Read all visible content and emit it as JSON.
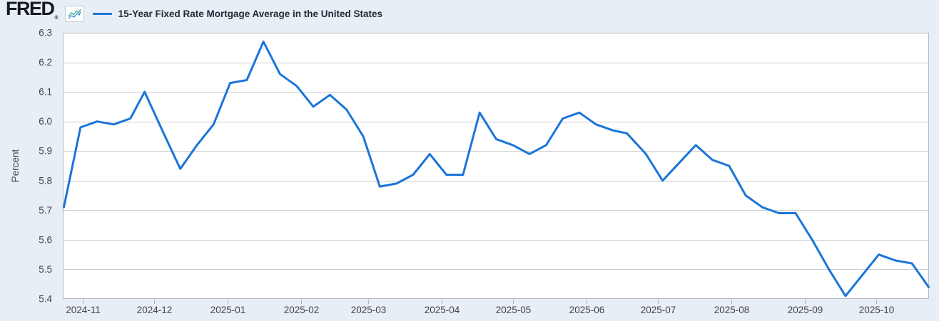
{
  "header": {
    "logo_text": "FRED",
    "registered_mark": "®"
  },
  "colors": {
    "background": "#e7eef6",
    "plot_background": "#ffffff",
    "frame": "#b3bac2",
    "grid": "#cccccc",
    "tick_mark": "#a9b4c0",
    "tick_text": "#444444",
    "title_text": "#222a35",
    "line": "#1b75d8",
    "icon_line_teal": "#3fae9d",
    "icon_line_blue": "#4f8fd6"
  },
  "chart_data": {
    "type": "line",
    "title": "15-Year Fixed Rate Mortgage Average in the United States",
    "ylabel": "Percent",
    "ylim": [
      5.4,
      6.3
    ],
    "y_ticks": [
      "6.3",
      "6.2",
      "6.1",
      "6.0",
      "5.9",
      "5.8",
      "5.7",
      "5.6",
      "5.5",
      "5.4"
    ],
    "x_tick_labels": [
      "2024-11",
      "2024-12",
      "2025-01",
      "2025-02",
      "2025-03",
      "2025-04",
      "2025-05",
      "2025-06",
      "2025-07",
      "2025-08",
      "2025-09",
      "2025-10"
    ],
    "x_range": [
      "2024-10-24",
      "2025-10-23"
    ],
    "grid": true,
    "legend_position": "top-left",
    "series": [
      {
        "name": "15-Year Fixed Rate Mortgage Average in the United States",
        "points": [
          [
            "2024-10-24",
            5.71
          ],
          [
            "2024-10-31",
            5.98
          ],
          [
            "2024-11-07",
            6.0
          ],
          [
            "2024-11-14",
            5.99
          ],
          [
            "2024-11-21",
            6.01
          ],
          [
            "2024-11-27",
            6.1
          ],
          [
            "2024-12-05",
            5.96
          ],
          [
            "2024-12-12",
            5.84
          ],
          [
            "2024-12-19",
            5.92
          ],
          [
            "2024-12-26",
            5.99
          ],
          [
            "2025-01-02",
            6.13
          ],
          [
            "2025-01-09",
            6.14
          ],
          [
            "2025-01-16",
            6.27
          ],
          [
            "2025-01-23",
            6.16
          ],
          [
            "2025-01-30",
            6.12
          ],
          [
            "2025-02-06",
            6.05
          ],
          [
            "2025-02-13",
            6.09
          ],
          [
            "2025-02-20",
            6.04
          ],
          [
            "2025-02-27",
            5.95
          ],
          [
            "2025-03-06",
            5.78
          ],
          [
            "2025-03-13",
            5.79
          ],
          [
            "2025-03-20",
            5.82
          ],
          [
            "2025-03-27",
            5.89
          ],
          [
            "2025-04-03",
            5.82
          ],
          [
            "2025-04-10",
            5.82
          ],
          [
            "2025-04-17",
            6.03
          ],
          [
            "2025-04-24",
            5.94
          ],
          [
            "2025-05-01",
            5.92
          ],
          [
            "2025-05-08",
            5.89
          ],
          [
            "2025-05-15",
            5.92
          ],
          [
            "2025-05-22",
            6.01
          ],
          [
            "2025-05-29",
            6.03
          ],
          [
            "2025-06-05",
            5.99
          ],
          [
            "2025-06-12",
            5.97
          ],
          [
            "2025-06-18",
            5.96
          ],
          [
            "2025-06-26",
            5.89
          ],
          [
            "2025-07-03",
            5.8
          ],
          [
            "2025-07-10",
            5.86
          ],
          [
            "2025-07-17",
            5.92
          ],
          [
            "2025-07-24",
            5.87
          ],
          [
            "2025-07-31",
            5.85
          ],
          [
            "2025-08-07",
            5.75
          ],
          [
            "2025-08-14",
            5.71
          ],
          [
            "2025-08-21",
            5.69
          ],
          [
            "2025-08-28",
            5.69
          ],
          [
            "2025-09-04",
            5.6
          ],
          [
            "2025-09-11",
            5.5
          ],
          [
            "2025-09-18",
            5.41
          ],
          [
            "2025-09-25",
            5.48
          ],
          [
            "2025-10-02",
            5.55
          ],
          [
            "2025-10-09",
            5.53
          ],
          [
            "2025-10-16",
            5.52
          ],
          [
            "2025-10-23",
            5.44
          ]
        ]
      }
    ]
  }
}
